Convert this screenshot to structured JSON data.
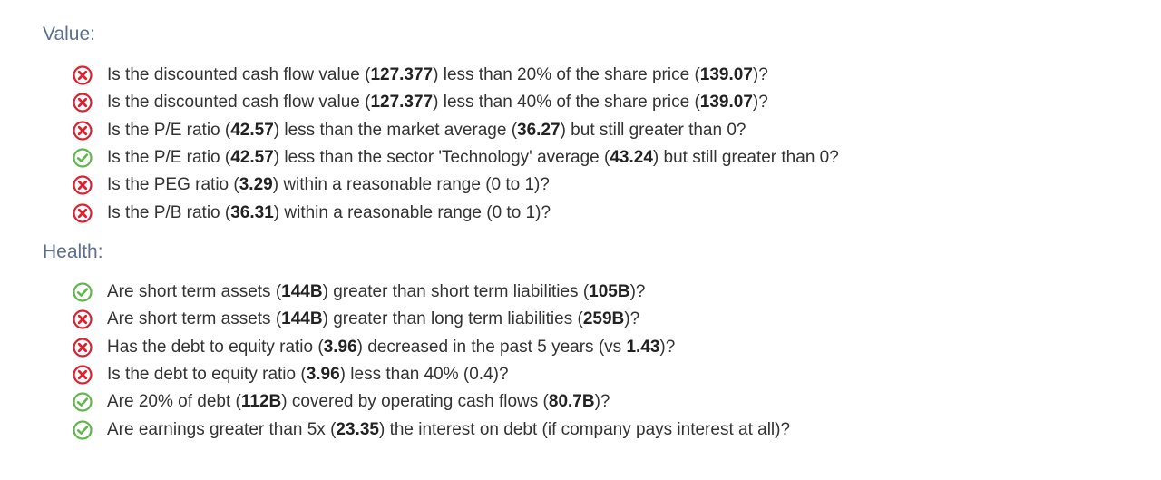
{
  "colors": {
    "pass": "#5fb84a",
    "fail": "#e0202e",
    "heading": "#5d6f8f"
  },
  "sections": [
    {
      "title": "Value:",
      "items": [
        {
          "status": "fail",
          "icon": "x-circle-icon",
          "parts": [
            {
              "t": "Is the discounted cash flow value ("
            },
            {
              "t": "127.377",
              "b": true
            },
            {
              "t": ") less than 20% of the share price ("
            },
            {
              "t": "139.07",
              "b": true
            },
            {
              "t": ")?"
            }
          ]
        },
        {
          "status": "fail",
          "icon": "x-circle-icon",
          "parts": [
            {
              "t": "Is the discounted cash flow value ("
            },
            {
              "t": "127.377",
              "b": true
            },
            {
              "t": ") less than 40% of the share price ("
            },
            {
              "t": "139.07",
              "b": true
            },
            {
              "t": ")?"
            }
          ]
        },
        {
          "status": "fail",
          "icon": "x-circle-icon",
          "parts": [
            {
              "t": "Is the P/E ratio ("
            },
            {
              "t": "42.57",
              "b": true
            },
            {
              "t": ") less than the market average ("
            },
            {
              "t": "36.27",
              "b": true
            },
            {
              "t": ") but still greater than 0?"
            }
          ]
        },
        {
          "status": "pass",
          "icon": "check-circle-icon",
          "parts": [
            {
              "t": "Is the P/E ratio ("
            },
            {
              "t": "42.57",
              "b": true
            },
            {
              "t": ") less than the sector 'Technology' average ("
            },
            {
              "t": "43.24",
              "b": true
            },
            {
              "t": ") but still greater than 0?"
            }
          ]
        },
        {
          "status": "fail",
          "icon": "x-circle-icon",
          "parts": [
            {
              "t": "Is the PEG ratio ("
            },
            {
              "t": "3.29",
              "b": true
            },
            {
              "t": ") within a reasonable range (0 to 1)?"
            }
          ]
        },
        {
          "status": "fail",
          "icon": "x-circle-icon",
          "parts": [
            {
              "t": "Is the P/B ratio ("
            },
            {
              "t": "36.31",
              "b": true
            },
            {
              "t": ") within a reasonable range (0 to 1)?"
            }
          ]
        }
      ]
    },
    {
      "title": "Health:",
      "items": [
        {
          "status": "pass",
          "icon": "check-circle-icon",
          "parts": [
            {
              "t": "Are short term assets ("
            },
            {
              "t": "144B",
              "b": true
            },
            {
              "t": ") greater than short term liabilities ("
            },
            {
              "t": "105B",
              "b": true
            },
            {
              "t": ")?"
            }
          ]
        },
        {
          "status": "fail",
          "icon": "x-circle-icon",
          "parts": [
            {
              "t": "Are short term assets ("
            },
            {
              "t": "144B",
              "b": true
            },
            {
              "t": ") greater than long term liabilities ("
            },
            {
              "t": "259B",
              "b": true
            },
            {
              "t": ")?"
            }
          ]
        },
        {
          "status": "fail",
          "icon": "x-circle-icon",
          "parts": [
            {
              "t": "Has the debt to equity ratio ("
            },
            {
              "t": "3.96",
              "b": true
            },
            {
              "t": ") decreased in the past 5 years (vs "
            },
            {
              "t": "1.43",
              "b": true
            },
            {
              "t": ")?"
            }
          ]
        },
        {
          "status": "fail",
          "icon": "x-circle-icon",
          "parts": [
            {
              "t": "Is the debt to equity ratio ("
            },
            {
              "t": "3.96",
              "b": true
            },
            {
              "t": ") less than 40% (0.4)?"
            }
          ]
        },
        {
          "status": "pass",
          "icon": "check-circle-icon",
          "parts": [
            {
              "t": "Are 20% of debt ("
            },
            {
              "t": "112B",
              "b": true
            },
            {
              "t": ") covered by operating cash flows ("
            },
            {
              "t": "80.7B",
              "b": true
            },
            {
              "t": ")?"
            }
          ]
        },
        {
          "status": "pass",
          "icon": "check-circle-icon",
          "parts": [
            {
              "t": "Are earnings greater than 5x ("
            },
            {
              "t": "23.35",
              "b": true
            },
            {
              "t": ") the interest on debt (if company pays interest at all)?"
            }
          ]
        }
      ]
    }
  ]
}
